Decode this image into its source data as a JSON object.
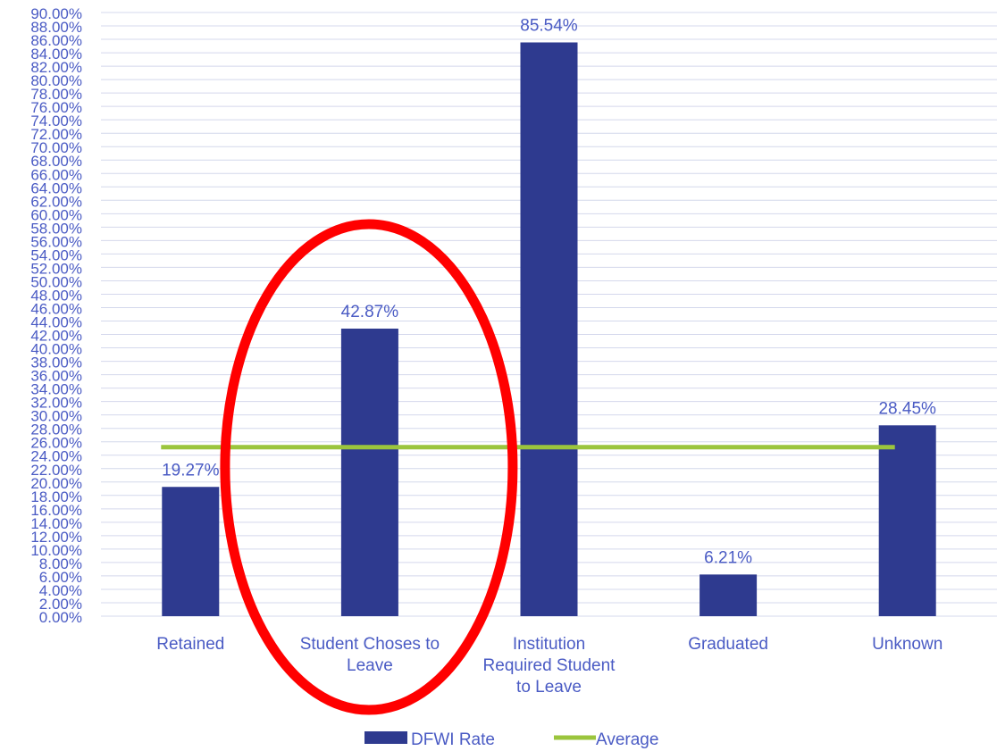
{
  "chart_data": {
    "type": "bar",
    "categories": [
      "Retained",
      "Student Choses to Leave",
      "Institution Required Student to Leave",
      "Graduated",
      "Unknown"
    ],
    "category_lines": [
      [
        "Retained"
      ],
      [
        "Student Choses to",
        "Leave"
      ],
      [
        "Institution",
        "Required Student",
        "to Leave"
      ],
      [
        "Graduated"
      ],
      [
        "Unknown"
      ]
    ],
    "series": [
      {
        "name": "DFWI Rate",
        "type": "bar",
        "values": [
          19.27,
          42.87,
          85.54,
          6.21,
          28.45
        ],
        "labels": [
          "19.27%",
          "42.87%",
          "85.54%",
          "6.21%",
          "28.45%"
        ]
      },
      {
        "name": "Average",
        "type": "line",
        "value": 25.2
      }
    ],
    "ylim": [
      0,
      90
    ],
    "ytick_step": 2,
    "ytick_suffix": "%",
    "ytick_decimals": 2,
    "grid": true,
    "legend_position": "bottom",
    "highlight": {
      "shape": "ellipse",
      "category": "Student Choses to Leave",
      "color": "#ff0000"
    },
    "colors": {
      "bar": "#2e3a8f",
      "line": "#9bc53d",
      "text": "#4a5bc4",
      "grid": "#d4d8ec"
    }
  }
}
